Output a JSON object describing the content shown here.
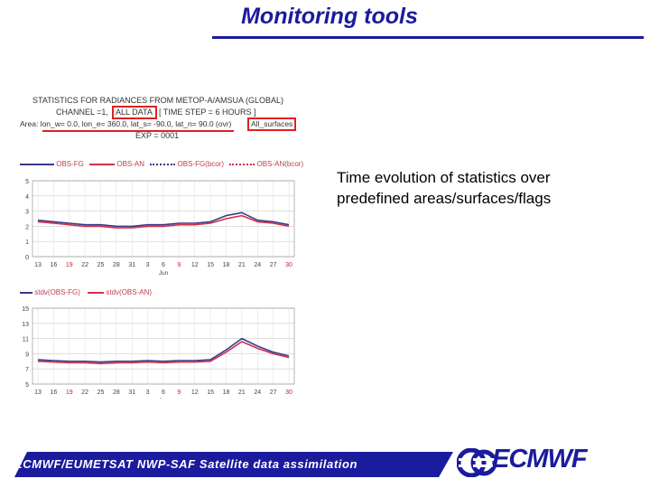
{
  "title": "Monitoring tools",
  "description": "Time evolution of statistics over predefined areas/surfaces/flags",
  "figure_header": {
    "line1": "STATISTICS FOR  RADIANCES  FROM METOP-A/AMSUA (GLOBAL)",
    "line2_prefix": "CHANNEL =1,",
    "line2_highlight": "ALL DATA",
    "line2_suffix": "[ TIME STEP =   6 HOURS ]",
    "line3_prefix": "Area: lon_w=   0.0, lon_e= 360.0, lat_s= -90.0, lat_n=  90.0 (ovr)",
    "line3_highlight": "All_surfaces",
    "line4": "EXP =  0001"
  },
  "footer": {
    "text": "ECMWF/EUMETSAT NWP-SAF Satellite data assimilation",
    "logo": "ECMWF"
  },
  "colors": {
    "title": "#1b1b9e",
    "footer_bg": "#1b1b9e",
    "series_fg": "#3a3a8c",
    "series_an": "#d0304a",
    "highlight": "#e02020"
  },
  "chart_data": [
    {
      "type": "line",
      "legend": [
        "OBS-FG",
        "OBS-AN",
        "OBS-FG(bcor)",
        "OBS-AN(bcor)"
      ],
      "x_tick_labels": [
        "13",
        "16",
        "19",
        "22",
        "25",
        "28",
        "31",
        "3",
        "6",
        "9",
        "12",
        "15",
        "18",
        "21",
        "24",
        "27",
        "30"
      ],
      "x_month_label": "Jun",
      "y_ticks": [
        0,
        1,
        2,
        3,
        4,
        5
      ],
      "ylim": [
        0,
        5
      ],
      "grid": true,
      "series": [
        {
          "name": "OBS-FG",
          "values": [
            2.4,
            2.3,
            2.2,
            2.1,
            2.1,
            2.0,
            2.0,
            2.1,
            2.1,
            2.2,
            2.2,
            2.3,
            2.7,
            2.9,
            2.4,
            2.3,
            2.1
          ]
        },
        {
          "name": "OBS-AN",
          "values": [
            2.3,
            2.2,
            2.1,
            2.0,
            2.0,
            1.9,
            1.9,
            2.0,
            2.0,
            2.1,
            2.1,
            2.2,
            2.5,
            2.7,
            2.3,
            2.2,
            2.0
          ]
        }
      ]
    },
    {
      "type": "line",
      "legend": [
        "stdv(OBS-FG)",
        "stdv(OBS-AN)"
      ],
      "x_tick_labels": [
        "13",
        "16",
        "19",
        "22",
        "25",
        "28",
        "31",
        "3",
        "6",
        "9",
        "12",
        "15",
        "18",
        "21",
        "24",
        "27",
        "30"
      ],
      "x_month_label": "Jun",
      "y_ticks": [
        5,
        7,
        9,
        11,
        13,
        15
      ],
      "ylim": [
        5,
        15
      ],
      "grid": true,
      "series": [
        {
          "name": "stdv(OBS-FG)",
          "values": [
            8.2,
            8.1,
            8.0,
            8.0,
            7.9,
            8.0,
            8.0,
            8.1,
            8.0,
            8.1,
            8.1,
            8.2,
            9.5,
            11.0,
            10.0,
            9.2,
            8.7
          ]
        },
        {
          "name": "stdv(OBS-AN)",
          "values": [
            8.0,
            7.9,
            7.8,
            7.8,
            7.7,
            7.8,
            7.8,
            7.9,
            7.8,
            7.9,
            7.9,
            8.0,
            9.2,
            10.6,
            9.7,
            9.0,
            8.5
          ]
        }
      ]
    }
  ]
}
